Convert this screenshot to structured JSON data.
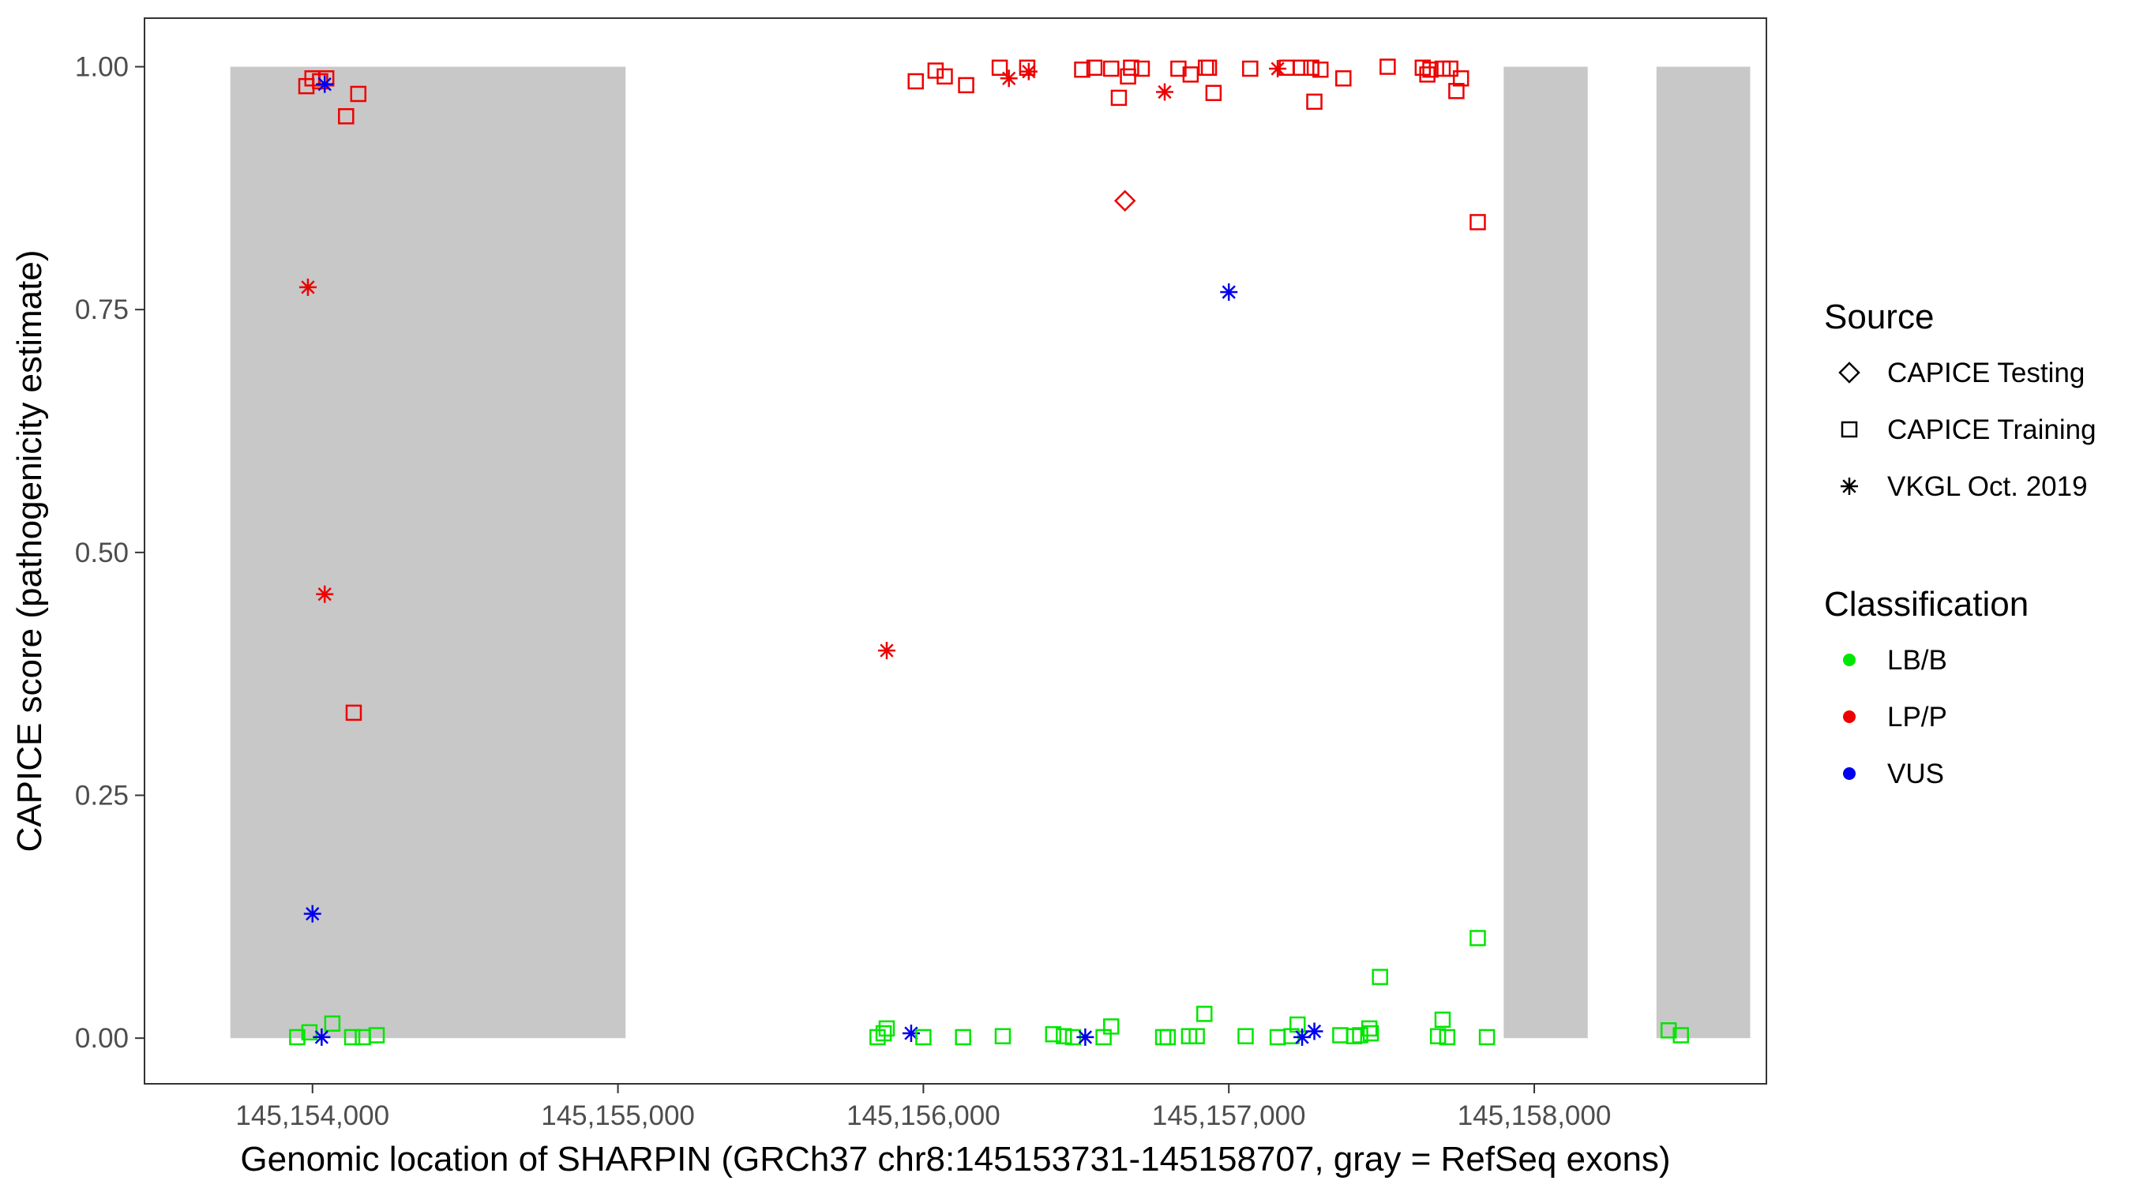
{
  "chart_data": {
    "type": "scatter",
    "title": "",
    "xlabel": "Genomic location of SHARPIN (GRCh37 chr8:145153731-145158707, gray = RefSeq exons)",
    "ylabel": "CAPICE score (pathogenicity estimate)",
    "xlim": [
      145153450,
      145158760
    ],
    "ylim": [
      -0.047,
      1.05
    ],
    "x_ticks": [
      145154000,
      145155000,
      145156000,
      145157000,
      145158000
    ],
    "x_tick_labels": [
      "145,154,000",
      "145,155,000",
      "145,156,000",
      "145,157,000",
      "145,158,000"
    ],
    "y_ticks": [
      0,
      0.25,
      0.5,
      0.75,
      1
    ],
    "y_tick_labels": [
      "0.00",
      "0.25",
      "0.50",
      "0.75",
      "1.00"
    ],
    "grid": false,
    "exons": [
      {
        "start": 145153731,
        "end": 145155025
      },
      {
        "start": 145157900,
        "end": 145158175
      },
      {
        "start": 145158400,
        "end": 145158707
      }
    ],
    "colors": {
      "LB/B": "#00e600",
      "LP/P": "#ee0000",
      "VUS": "#0000ee",
      "exon": "#c8c8c8"
    },
    "legend": {
      "position": "right",
      "source_title": "Source",
      "source_items": [
        {
          "label": "CAPICE Testing",
          "shape": "diamond"
        },
        {
          "label": "CAPICE Training",
          "shape": "square"
        },
        {
          "label": "VKGL Oct. 2019",
          "shape": "asterisk"
        }
      ],
      "class_title": "Classification",
      "class_items": [
        {
          "label": "LB/B",
          "key": "LB/B"
        },
        {
          "label": "LP/P",
          "key": "LP/P"
        },
        {
          "label": "VUS",
          "key": "VUS"
        }
      ]
    },
    "points": [
      {
        "x": 145153980,
        "y": 0.98,
        "shape": "square",
        "cls": "LP/P"
      },
      {
        "x": 145154000,
        "y": 0.988,
        "shape": "square",
        "cls": "LP/P"
      },
      {
        "x": 145154025,
        "y": 0.985,
        "shape": "square",
        "cls": "LP/P"
      },
      {
        "x": 145154045,
        "y": 0.988,
        "shape": "square",
        "cls": "LP/P"
      },
      {
        "x": 145154150,
        "y": 0.972,
        "shape": "square",
        "cls": "LP/P"
      },
      {
        "x": 145154110,
        "y": 0.949,
        "shape": "square",
        "cls": "LP/P"
      },
      {
        "x": 145154040,
        "y": 0.982,
        "shape": "asterisk",
        "cls": "VUS"
      },
      {
        "x": 145153985,
        "y": 0.773,
        "shape": "asterisk",
        "cls": "LP/P"
      },
      {
        "x": 145154040,
        "y": 0.457,
        "shape": "asterisk",
        "cls": "LP/P"
      },
      {
        "x": 145154135,
        "y": 0.335,
        "shape": "square",
        "cls": "LP/P"
      },
      {
        "x": 145154000,
        "y": 0.128,
        "shape": "asterisk",
        "cls": "VUS"
      },
      {
        "x": 145153950,
        "y": 0.001,
        "shape": "square",
        "cls": "LB/B"
      },
      {
        "x": 145153990,
        "y": 0.006,
        "shape": "square",
        "cls": "LB/B"
      },
      {
        "x": 145154065,
        "y": 0.015,
        "shape": "square",
        "cls": "LB/B"
      },
      {
        "x": 145154130,
        "y": 0.001,
        "shape": "square",
        "cls": "LB/B"
      },
      {
        "x": 145154165,
        "y": 0.001,
        "shape": "square",
        "cls": "LB/B"
      },
      {
        "x": 145154210,
        "y": 0.003,
        "shape": "square",
        "cls": "LB/B"
      },
      {
        "x": 145154030,
        "y": 0.001,
        "shape": "asterisk",
        "cls": "VUS"
      },
      {
        "x": 145155975,
        "y": 0.985,
        "shape": "square",
        "cls": "LP/P"
      },
      {
        "x": 145156040,
        "y": 0.996,
        "shape": "square",
        "cls": "LP/P"
      },
      {
        "x": 145156070,
        "y": 0.99,
        "shape": "square",
        "cls": "LP/P"
      },
      {
        "x": 145156140,
        "y": 0.981,
        "shape": "square",
        "cls": "LP/P"
      },
      {
        "x": 145156250,
        "y": 0.999,
        "shape": "square",
        "cls": "LP/P"
      },
      {
        "x": 145156280,
        "y": 0.988,
        "shape": "asterisk",
        "cls": "LP/P"
      },
      {
        "x": 145156340,
        "y": 0.999,
        "shape": "square",
        "cls": "LP/P"
      },
      {
        "x": 145156345,
        "y": 0.995,
        "shape": "asterisk",
        "cls": "LP/P"
      },
      {
        "x": 145156520,
        "y": 0.997,
        "shape": "square",
        "cls": "LP/P"
      },
      {
        "x": 145156560,
        "y": 0.999,
        "shape": "square",
        "cls": "LP/P"
      },
      {
        "x": 145156615,
        "y": 0.998,
        "shape": "square",
        "cls": "LP/P"
      },
      {
        "x": 145156640,
        "y": 0.968,
        "shape": "square",
        "cls": "LP/P"
      },
      {
        "x": 145156670,
        "y": 0.99,
        "shape": "square",
        "cls": "LP/P"
      },
      {
        "x": 145156680,
        "y": 0.999,
        "shape": "square",
        "cls": "LP/P"
      },
      {
        "x": 145156715,
        "y": 0.998,
        "shape": "square",
        "cls": "LP/P"
      },
      {
        "x": 145156790,
        "y": 0.974,
        "shape": "asterisk",
        "cls": "LP/P"
      },
      {
        "x": 145156835,
        "y": 0.998,
        "shape": "square",
        "cls": "LP/P"
      },
      {
        "x": 145156875,
        "y": 0.992,
        "shape": "square",
        "cls": "LP/P"
      },
      {
        "x": 145156925,
        "y": 0.999,
        "shape": "square",
        "cls": "LP/P"
      },
      {
        "x": 145156935,
        "y": 0.999,
        "shape": "square",
        "cls": "LP/P"
      },
      {
        "x": 145156950,
        "y": 0.973,
        "shape": "square",
        "cls": "LP/P"
      },
      {
        "x": 145157070,
        "y": 0.998,
        "shape": "square",
        "cls": "LP/P"
      },
      {
        "x": 145157160,
        "y": 0.998,
        "shape": "asterisk",
        "cls": "LP/P"
      },
      {
        "x": 145157190,
        "y": 0.999,
        "shape": "square",
        "cls": "LP/P"
      },
      {
        "x": 145157235,
        "y": 0.999,
        "shape": "square",
        "cls": "LP/P"
      },
      {
        "x": 145157270,
        "y": 0.999,
        "shape": "square",
        "cls": "LP/P"
      },
      {
        "x": 145157280,
        "y": 0.964,
        "shape": "square",
        "cls": "LP/P"
      },
      {
        "x": 145157300,
        "y": 0.997,
        "shape": "square",
        "cls": "LP/P"
      },
      {
        "x": 145157375,
        "y": 0.988,
        "shape": "square",
        "cls": "LP/P"
      },
      {
        "x": 145157520,
        "y": 1.0,
        "shape": "square",
        "cls": "LP/P"
      },
      {
        "x": 145157635,
        "y": 0.999,
        "shape": "square",
        "cls": "LP/P"
      },
      {
        "x": 145157650,
        "y": 0.992,
        "shape": "square",
        "cls": "LP/P"
      },
      {
        "x": 145157660,
        "y": 0.997,
        "shape": "square",
        "cls": "LP/P"
      },
      {
        "x": 145157700,
        "y": 0.998,
        "shape": "square",
        "cls": "LP/P"
      },
      {
        "x": 145157725,
        "y": 0.998,
        "shape": "square",
        "cls": "LP/P"
      },
      {
        "x": 145157745,
        "y": 0.975,
        "shape": "square",
        "cls": "LP/P"
      },
      {
        "x": 145157760,
        "y": 0.988,
        "shape": "square",
        "cls": "LP/P"
      },
      {
        "x": 145156660,
        "y": 0.862,
        "shape": "diamond",
        "cls": "LP/P"
      },
      {
        "x": 145157815,
        "y": 0.84,
        "shape": "square",
        "cls": "LP/P"
      },
      {
        "x": 145157000,
        "y": 0.768,
        "shape": "asterisk",
        "cls": "VUS"
      },
      {
        "x": 145155880,
        "y": 0.399,
        "shape": "asterisk",
        "cls": "LP/P"
      },
      {
        "x": 145157815,
        "y": 0.103,
        "shape": "square",
        "cls": "LB/B"
      },
      {
        "x": 145157495,
        "y": 0.063,
        "shape": "square",
        "cls": "LB/B"
      },
      {
        "x": 145156920,
        "y": 0.025,
        "shape": "square",
        "cls": "LB/B"
      },
      {
        "x": 145157700,
        "y": 0.019,
        "shape": "square",
        "cls": "LB/B"
      },
      {
        "x": 145157225,
        "y": 0.014,
        "shape": "square",
        "cls": "LB/B"
      },
      {
        "x": 145156615,
        "y": 0.012,
        "shape": "square",
        "cls": "LB/B"
      },
      {
        "x": 145155880,
        "y": 0.01,
        "shape": "square",
        "cls": "LB/B"
      },
      {
        "x": 145157460,
        "y": 0.01,
        "shape": "square",
        "cls": "LB/B"
      },
      {
        "x": 145155850,
        "y": 0.001,
        "shape": "square",
        "cls": "LB/B"
      },
      {
        "x": 145155870,
        "y": 0.005,
        "shape": "square",
        "cls": "LB/B"
      },
      {
        "x": 145155960,
        "y": 0.005,
        "shape": "asterisk",
        "cls": "VUS"
      },
      {
        "x": 145156000,
        "y": 0.001,
        "shape": "square",
        "cls": "LB/B"
      },
      {
        "x": 145156130,
        "y": 0.001,
        "shape": "square",
        "cls": "LB/B"
      },
      {
        "x": 145156260,
        "y": 0.002,
        "shape": "square",
        "cls": "LB/B"
      },
      {
        "x": 145156425,
        "y": 0.004,
        "shape": "square",
        "cls": "LB/B"
      },
      {
        "x": 145156460,
        "y": 0.002,
        "shape": "square",
        "cls": "LB/B"
      },
      {
        "x": 145156490,
        "y": 0.001,
        "shape": "square",
        "cls": "LB/B"
      },
      {
        "x": 145156530,
        "y": 0.001,
        "shape": "asterisk",
        "cls": "VUS"
      },
      {
        "x": 145156590,
        "y": 0.001,
        "shape": "square",
        "cls": "LB/B"
      },
      {
        "x": 145156785,
        "y": 0.001,
        "shape": "square",
        "cls": "LB/B"
      },
      {
        "x": 145156800,
        "y": 0.001,
        "shape": "square",
        "cls": "LB/B"
      },
      {
        "x": 145156870,
        "y": 0.002,
        "shape": "square",
        "cls": "LB/B"
      },
      {
        "x": 145156895,
        "y": 0.002,
        "shape": "square",
        "cls": "LB/B"
      },
      {
        "x": 145157055,
        "y": 0.002,
        "shape": "square",
        "cls": "LB/B"
      },
      {
        "x": 145157160,
        "y": 0.001,
        "shape": "square",
        "cls": "LB/B"
      },
      {
        "x": 145157205,
        "y": 0.002,
        "shape": "square",
        "cls": "LB/B"
      },
      {
        "x": 145157240,
        "y": 0.001,
        "shape": "asterisk",
        "cls": "VUS"
      },
      {
        "x": 145157280,
        "y": 0.007,
        "shape": "asterisk",
        "cls": "VUS"
      },
      {
        "x": 145157365,
        "y": 0.003,
        "shape": "square",
        "cls": "LB/B"
      },
      {
        "x": 145157410,
        "y": 0.002,
        "shape": "square",
        "cls": "LB/B"
      },
      {
        "x": 145157430,
        "y": 0.003,
        "shape": "square",
        "cls": "LB/B"
      },
      {
        "x": 145157465,
        "y": 0.005,
        "shape": "square",
        "cls": "LB/B"
      },
      {
        "x": 145157685,
        "y": 0.002,
        "shape": "square",
        "cls": "LB/B"
      },
      {
        "x": 145157715,
        "y": 0.001,
        "shape": "square",
        "cls": "LB/B"
      },
      {
        "x": 145157845,
        "y": 0.001,
        "shape": "square",
        "cls": "LB/B"
      },
      {
        "x": 145158440,
        "y": 0.008,
        "shape": "square",
        "cls": "LB/B"
      },
      {
        "x": 145158480,
        "y": 0.003,
        "shape": "square",
        "cls": "LB/B"
      }
    ]
  }
}
